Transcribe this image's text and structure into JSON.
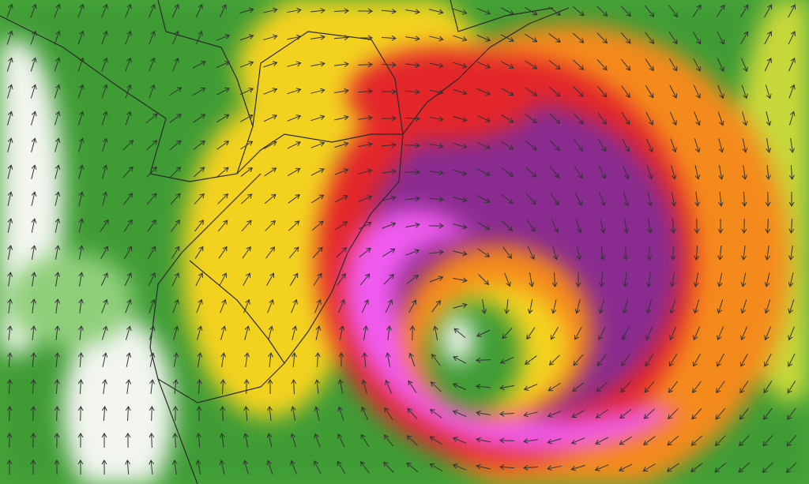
{
  "map": {
    "palette": {
      "calm_white": "#f2f5f0",
      "light_green": "#8fcf7a",
      "green": "#3f9c35",
      "yellow_green": "#c8d83a",
      "yellow": "#f3d21f",
      "orange": "#f58a1c",
      "red": "#e3262a",
      "purple": "#8a2c8f",
      "magenta": "#f05bef",
      "border_line": "#2a2a2a",
      "arrow": "#333333"
    }
  }
}
